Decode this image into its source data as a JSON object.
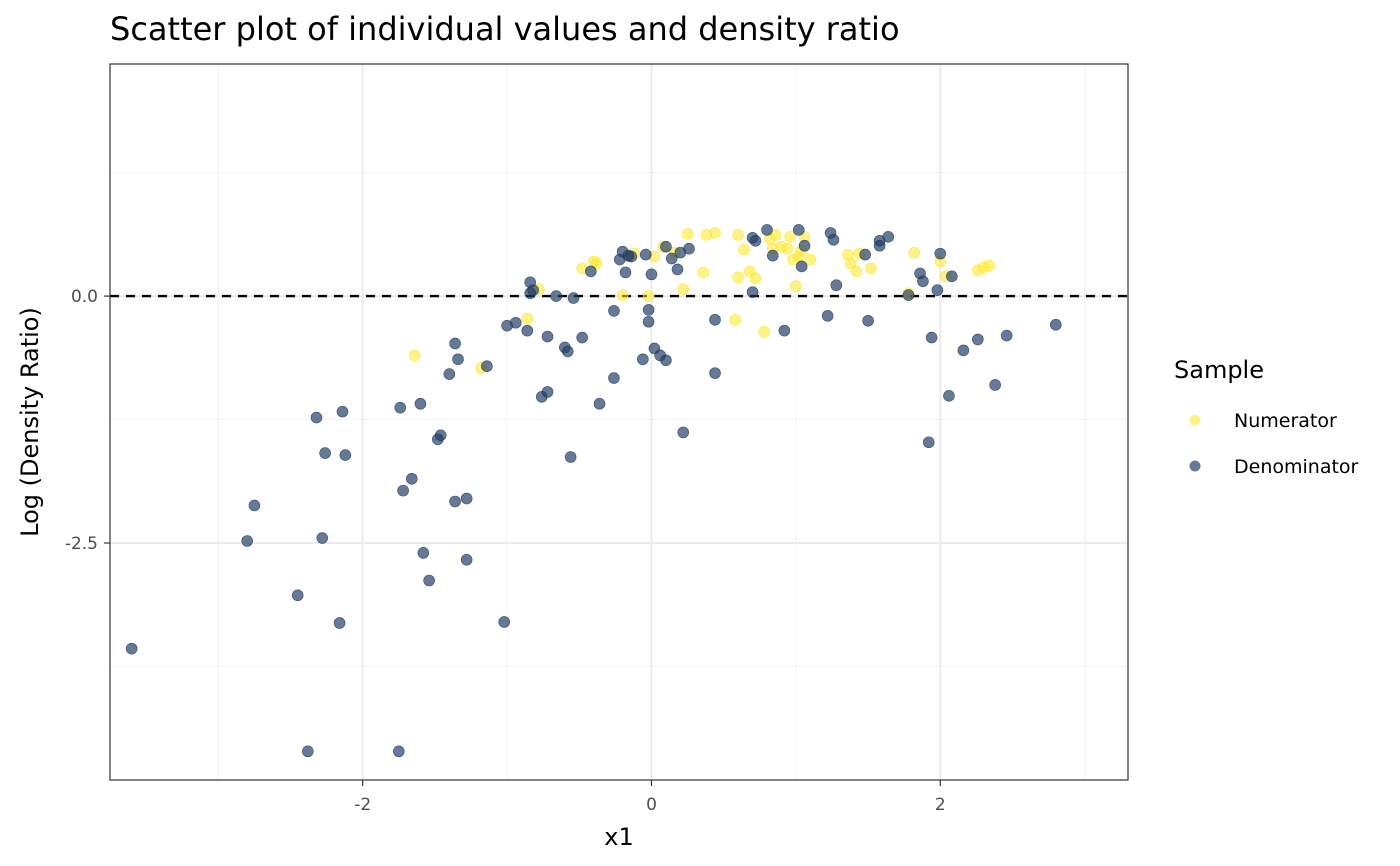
{
  "chart_data": {
    "type": "scatter",
    "title": "Scatter plot of individual values and density ratio",
    "xlabel": "x1",
    "ylabel": "Log (Density Ratio)",
    "xlim": [
      -3.75,
      3.3
    ],
    "ylim": [
      -4.9,
      2.35
    ],
    "x_ticks": [
      {
        "value": -2,
        "label": "-2"
      },
      {
        "value": 0,
        "label": "0"
      },
      {
        "value": 2,
        "label": "2"
      }
    ],
    "y_ticks": [
      {
        "value": 0,
        "label": "0.0"
      },
      {
        "value": -2.5,
        "label": "-2.5"
      }
    ],
    "x_minor_gridlines": [
      -3,
      -1,
      1,
      3
    ],
    "y_minor_gridlines": [
      1.25,
      -1.25,
      -3.75
    ],
    "grid": true,
    "reference_line": {
      "y": 0,
      "style": "dashed",
      "color": "#000000"
    },
    "legend": {
      "title": "Sample",
      "position": "right"
    },
    "series": [
      {
        "name": "Numerator",
        "color": "#fde725",
        "points": [
          [
            -1.64,
            -0.6
          ],
          [
            -1.18,
            -0.73
          ],
          [
            -0.86,
            -0.23
          ],
          [
            -0.78,
            0.07
          ],
          [
            -0.48,
            0.28
          ],
          [
            -0.4,
            0.35
          ],
          [
            -0.38,
            0.33
          ],
          [
            -0.2,
            0.01
          ],
          [
            -0.16,
            0.4
          ],
          [
            -0.12,
            0.43
          ],
          [
            -0.02,
            0.0
          ],
          [
            0.02,
            0.4
          ],
          [
            0.08,
            0.5
          ],
          [
            0.16,
            0.44
          ],
          [
            0.22,
            0.07
          ],
          [
            0.25,
            0.63
          ],
          [
            0.36,
            0.24
          ],
          [
            0.38,
            0.62
          ],
          [
            0.44,
            0.64
          ],
          [
            0.58,
            -0.24
          ],
          [
            0.6,
            0.62
          ],
          [
            0.6,
            0.19
          ],
          [
            0.64,
            0.47
          ],
          [
            0.68,
            0.25
          ],
          [
            0.72,
            0.18
          ],
          [
            0.78,
            -0.36
          ],
          [
            0.82,
            0.58
          ],
          [
            0.84,
            0.48
          ],
          [
            0.86,
            0.62
          ],
          [
            0.9,
            0.5
          ],
          [
            0.94,
            0.48
          ],
          [
            0.96,
            0.6
          ],
          [
            0.98,
            0.37
          ],
          [
            1.0,
            0.1
          ],
          [
            1.02,
            0.4
          ],
          [
            1.04,
            0.46
          ],
          [
            1.06,
            0.6
          ],
          [
            1.1,
            0.37
          ],
          [
            1.36,
            0.42
          ],
          [
            1.38,
            0.33
          ],
          [
            1.42,
            0.25
          ],
          [
            1.44,
            0.43
          ],
          [
            1.52,
            0.28
          ],
          [
            1.78,
            0.03
          ],
          [
            1.82,
            0.44
          ],
          [
            2.0,
            0.35
          ],
          [
            2.04,
            0.2
          ],
          [
            2.26,
            0.26
          ],
          [
            2.3,
            0.29
          ],
          [
            2.34,
            0.31
          ]
        ]
      },
      {
        "name": "Denominator",
        "color": "#1f3b63",
        "points": [
          [
            -3.6,
            -3.57
          ],
          [
            -2.8,
            -2.48
          ],
          [
            -2.75,
            -2.12
          ],
          [
            -2.45,
            -3.03
          ],
          [
            -2.38,
            -4.61
          ],
          [
            -2.32,
            -1.23
          ],
          [
            -2.28,
            -2.45
          ],
          [
            -2.26,
            -1.59
          ],
          [
            -2.16,
            -3.31
          ],
          [
            -2.14,
            -1.17
          ],
          [
            -2.12,
            -1.61
          ],
          [
            -1.75,
            -4.61
          ],
          [
            -1.74,
            -1.13
          ],
          [
            -1.72,
            -1.97
          ],
          [
            -1.66,
            -1.85
          ],
          [
            -1.6,
            -1.09
          ],
          [
            -1.58,
            -2.6
          ],
          [
            -1.54,
            -2.88
          ],
          [
            -1.48,
            -1.45
          ],
          [
            -1.46,
            -1.41
          ],
          [
            -1.4,
            -0.79
          ],
          [
            -1.36,
            -2.08
          ],
          [
            -1.34,
            -0.64
          ],
          [
            -1.28,
            -2.05
          ],
          [
            -1.28,
            -2.67
          ],
          [
            -1.36,
            -0.48
          ],
          [
            -1.14,
            -0.71
          ],
          [
            -1.02,
            -3.3
          ],
          [
            -1.0,
            -0.3
          ],
          [
            -0.94,
            -0.27
          ],
          [
            -0.86,
            -0.35
          ],
          [
            -0.84,
            0.14
          ],
          [
            -0.84,
            0.03
          ],
          [
            -0.82,
            0.06
          ],
          [
            -0.76,
            -1.02
          ],
          [
            -0.72,
            -0.41
          ],
          [
            -0.72,
            -0.97
          ],
          [
            -0.66,
            0.0
          ],
          [
            -0.6,
            -0.52
          ],
          [
            -0.58,
            -0.56
          ],
          [
            -0.56,
            -1.63
          ],
          [
            -0.54,
            -0.02
          ],
          [
            -0.48,
            -0.42
          ],
          [
            -0.42,
            0.25
          ],
          [
            -0.36,
            -1.09
          ],
          [
            -0.26,
            -0.15
          ],
          [
            -0.26,
            -0.83
          ],
          [
            -0.22,
            0.37
          ],
          [
            -0.2,
            0.45
          ],
          [
            -0.18,
            0.24
          ],
          [
            -0.16,
            0.41
          ],
          [
            -0.14,
            0.4
          ],
          [
            -0.06,
            -0.64
          ],
          [
            -0.04,
            0.42
          ],
          [
            -0.02,
            -0.14
          ],
          [
            -0.02,
            -0.26
          ],
          [
            0.0,
            0.22
          ],
          [
            0.02,
            -0.53
          ],
          [
            0.06,
            -0.6
          ],
          [
            0.1,
            -0.65
          ],
          [
            0.1,
            0.5
          ],
          [
            0.14,
            0.38
          ],
          [
            0.18,
            0.27
          ],
          [
            0.2,
            0.44
          ],
          [
            0.22,
            -1.38
          ],
          [
            0.26,
            0.48
          ],
          [
            0.44,
            -0.24
          ],
          [
            0.44,
            -0.78
          ],
          [
            0.7,
            0.04
          ],
          [
            0.7,
            0.59
          ],
          [
            0.72,
            0.56
          ],
          [
            0.8,
            0.67
          ],
          [
            0.84,
            0.41
          ],
          [
            0.92,
            -0.35
          ],
          [
            1.02,
            0.67
          ],
          [
            1.04,
            0.3
          ],
          [
            1.06,
            0.51
          ],
          [
            1.28,
            0.11
          ],
          [
            1.22,
            -0.2
          ],
          [
            1.24,
            0.64
          ],
          [
            1.26,
            0.57
          ],
          [
            1.48,
            0.42
          ],
          [
            1.5,
            -0.25
          ],
          [
            1.58,
            0.51
          ],
          [
            1.58,
            0.56
          ],
          [
            1.64,
            0.6
          ],
          [
            1.78,
            0.01
          ],
          [
            1.86,
            0.23
          ],
          [
            1.88,
            0.15
          ],
          [
            1.92,
            -1.48
          ],
          [
            1.94,
            -0.42
          ],
          [
            1.98,
            0.06
          ],
          [
            2.0,
            0.43
          ],
          [
            2.06,
            -1.01
          ],
          [
            2.08,
            0.2
          ],
          [
            2.16,
            -0.55
          ],
          [
            2.26,
            -0.44
          ],
          [
            2.38,
            -0.9
          ],
          [
            2.46,
            -0.4
          ],
          [
            2.8,
            -0.29
          ]
        ]
      }
    ]
  }
}
